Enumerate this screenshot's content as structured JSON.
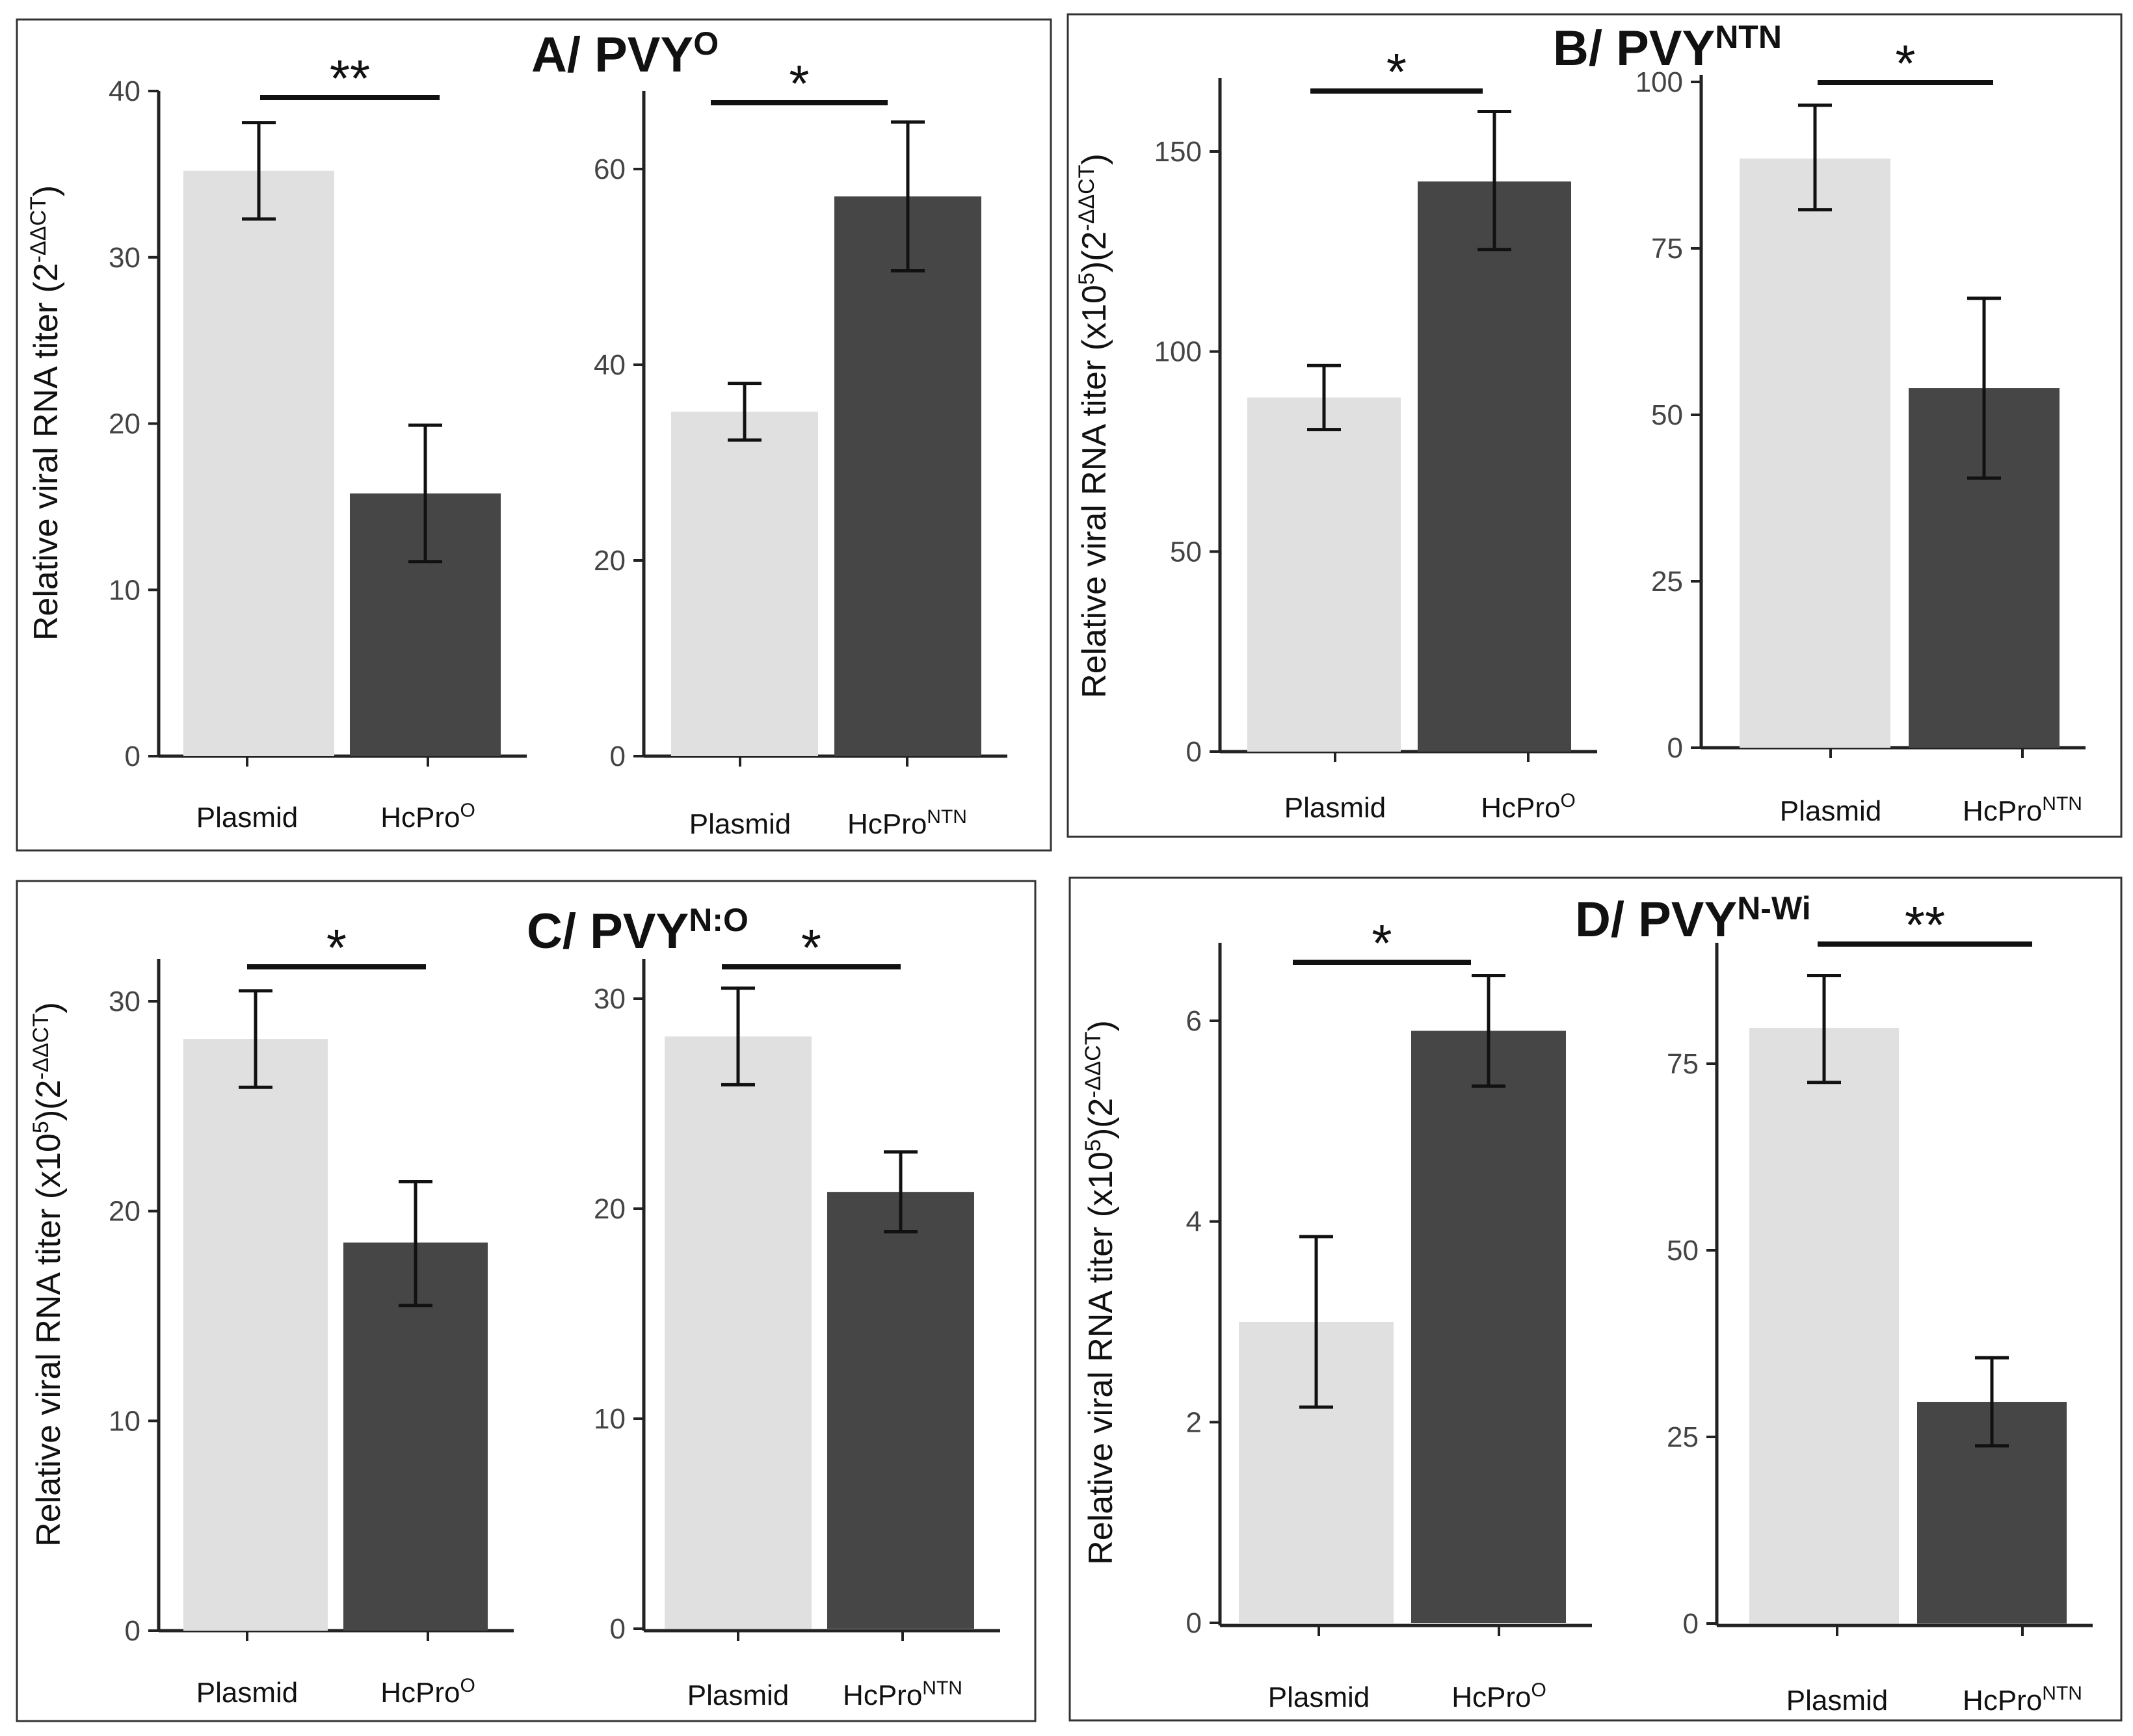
{
  "colors": {
    "plasmid": "#e0e0e0",
    "hcpro": "#464646"
  },
  "panels": [
    {
      "title": "A/ PVY",
      "title_sup": "O",
      "ylabel": "Relative viral RNA titer (2",
      "ylabel_sup": "-ΔΔCT",
      "ylabel_end": ")"
    },
    {
      "title": "B/ PVY",
      "title_sup": "NTN",
      "ylabel": "Relative viral RNA titer (x10",
      "ylabel_sup": "5",
      "ylabel_mid": ")(2",
      "ylabel_sup2": "-ΔΔCT",
      "ylabel_end": ")"
    },
    {
      "title": "C/ PVY",
      "title_sup": "N:O",
      "ylabel": "Relative viral RNA titer (x10",
      "ylabel_sup": "5",
      "ylabel_mid": ")(2",
      "ylabel_sup2": "-ΔΔCT",
      "ylabel_end": ")"
    },
    {
      "title": "D/ PVY",
      "title_sup": "N-Wi",
      "ylabel": "Relative viral RNA titer (x10",
      "ylabel_sup": "5",
      "ylabel_mid": ")(2",
      "ylabel_sup2": "-ΔΔCT",
      "ylabel_end": ")"
    }
  ],
  "chart_data": [
    {
      "type": "bar",
      "panel": "A",
      "categories": [
        "Plasmid",
        "HcPro"
      ],
      "category_sups": [
        "",
        "O"
      ],
      "values": [
        35.2,
        15.8
      ],
      "error_low": [
        32.3,
        11.7
      ],
      "error_high": [
        38.1,
        19.9
      ],
      "ylim": [
        0,
        40
      ],
      "yticks": [
        0,
        10,
        20,
        30,
        40
      ],
      "significance": "**"
    },
    {
      "type": "bar",
      "panel": "A",
      "categories": [
        "Plasmid",
        "HcPro"
      ],
      "category_sups": [
        "",
        "NTN"
      ],
      "values": [
        35.2,
        57.2
      ],
      "error_low": [
        32.3,
        49.6
      ],
      "error_high": [
        38.1,
        64.8
      ],
      "ylim": [
        0,
        60
      ],
      "yticks": [
        0,
        20,
        40,
        60
      ],
      "significance": "*"
    },
    {
      "type": "bar",
      "panel": "B",
      "categories": [
        "Plasmid",
        "HcPro"
      ],
      "category_sups": [
        "",
        "O"
      ],
      "values": [
        88.5,
        142.5
      ],
      "error_low": [
        80.5,
        125.5
      ],
      "error_high": [
        96.5,
        160.0
      ],
      "ylim": [
        0,
        150
      ],
      "yticks": [
        0,
        50,
        100,
        150
      ],
      "significance": "*"
    },
    {
      "type": "bar",
      "panel": "B",
      "categories": [
        "Plasmid",
        "HcPro"
      ],
      "category_sups": [
        "",
        "NTN"
      ],
      "values": [
        88.5,
        54.0
      ],
      "error_low": [
        80.8,
        40.5
      ],
      "error_high": [
        96.5,
        67.5
      ],
      "ylim": [
        0,
        100
      ],
      "yticks": [
        0,
        25,
        50,
        75,
        100
      ],
      "significance": "*"
    },
    {
      "type": "bar",
      "panel": "C",
      "categories": [
        "Plasmid",
        "HcPro"
      ],
      "category_sups": [
        "",
        "O"
      ],
      "values": [
        28.2,
        18.5
      ],
      "error_low": [
        25.9,
        15.5
      ],
      "error_high": [
        30.5,
        21.4
      ],
      "ylim": [
        0,
        30
      ],
      "yticks": [
        0,
        10,
        20,
        30
      ],
      "significance": "*"
    },
    {
      "type": "bar",
      "panel": "C",
      "categories": [
        "Plasmid",
        "HcPro"
      ],
      "category_sups": [
        "",
        "NTN"
      ],
      "values": [
        28.2,
        20.8
      ],
      "error_low": [
        25.9,
        18.9
      ],
      "error_high": [
        30.5,
        22.7
      ],
      "ylim": [
        0,
        30
      ],
      "yticks": [
        0,
        10,
        20,
        30
      ],
      "significance": "*"
    },
    {
      "type": "bar",
      "panel": "D",
      "categories": [
        "Plasmid",
        "HcPro"
      ],
      "category_sups": [
        "",
        "O"
      ],
      "values": [
        3.0,
        5.9
      ],
      "error_low": [
        2.15,
        5.35
      ],
      "error_high": [
        3.85,
        6.45
      ],
      "ylim": [
        0,
        6
      ],
      "yticks": [
        0,
        2,
        4,
        6
      ],
      "significance": "*"
    },
    {
      "type": "bar",
      "panel": "D",
      "categories": [
        "Plasmid",
        "HcPro"
      ],
      "category_sups": [
        "",
        "NTN"
      ],
      "values": [
        79.8,
        29.7
      ],
      "error_low": [
        72.5,
        23.8
      ],
      "error_high": [
        86.8,
        35.6
      ],
      "ylim": [
        0,
        75
      ],
      "yticks": [
        0,
        25,
        50,
        75
      ],
      "significance": "**"
    }
  ]
}
